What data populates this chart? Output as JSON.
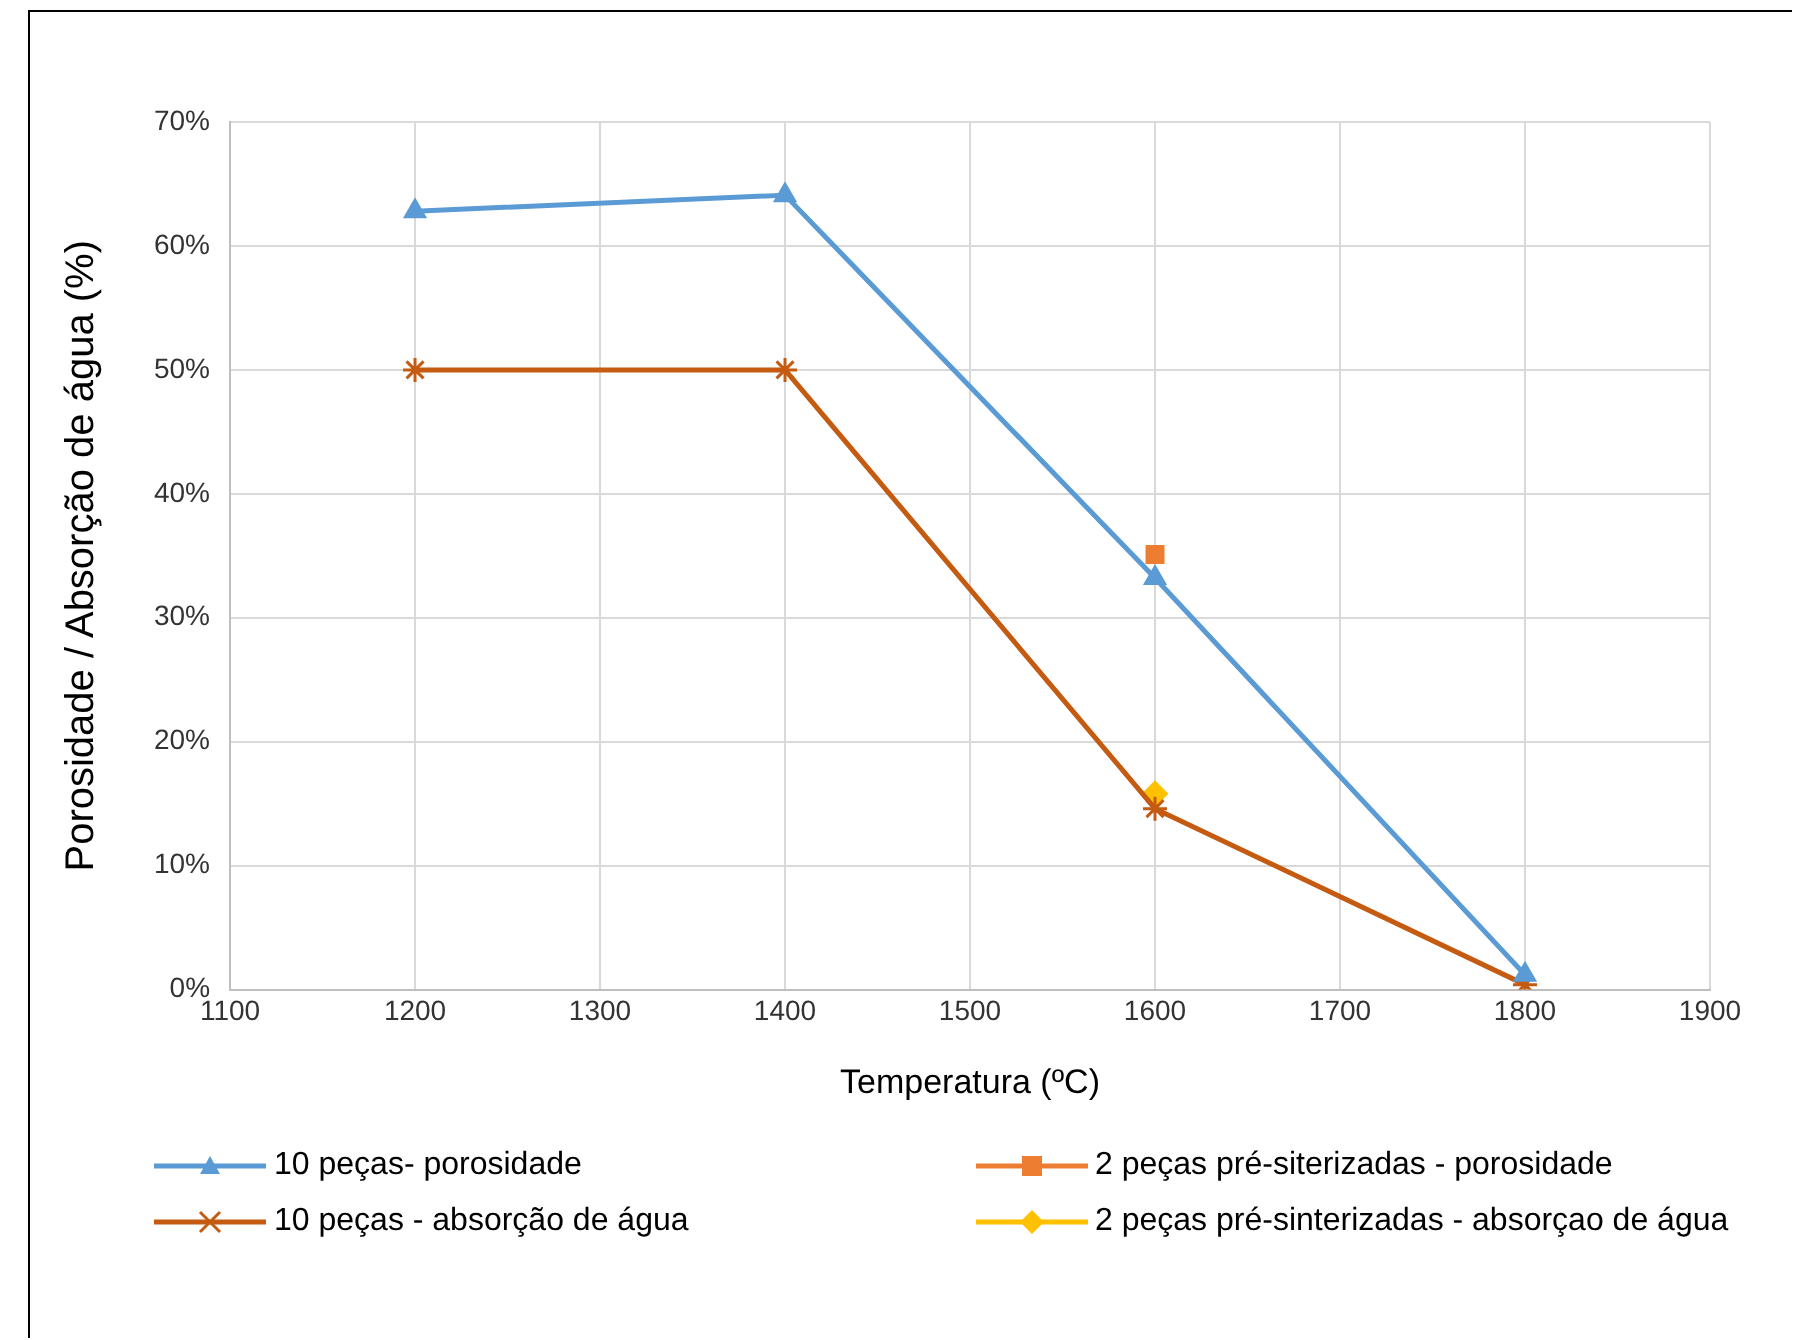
{
  "chart_data": {
    "type": "line",
    "xlabel": "Temperatura (ºC)",
    "ylabel": "Porosidade / Absorção de água (%)",
    "xlim": [
      1100,
      1900
    ],
    "xticks": [
      1100,
      1200,
      1300,
      1400,
      1500,
      1600,
      1700,
      1800,
      1900
    ],
    "ylim": [
      0,
      70
    ],
    "yticks": [
      {
        "value": 0,
        "label": "0%"
      },
      {
        "value": 10,
        "label": "10%"
      },
      {
        "value": 20,
        "label": "20%"
      },
      {
        "value": 30,
        "label": "30%"
      },
      {
        "value": 40,
        "label": "40%"
      },
      {
        "value": 50,
        "label": "50%"
      },
      {
        "value": 60,
        "label": "60%"
      },
      {
        "value": 70,
        "label": "70%"
      }
    ],
    "grid": true,
    "legend": "bottom",
    "series": [
      {
        "name": "10 peças- porosidade",
        "color": "#5b9bd5",
        "marker": "triangle",
        "x": [
          1200,
          1400,
          1600,
          1800
        ],
        "values": [
          62.8,
          64.1,
          33.2,
          1.2
        ]
      },
      {
        "name": "2 peças pré-siterizadas - porosidade",
        "color": "#ed7d31",
        "marker": "square",
        "x": [
          1600
        ],
        "values": [
          35.1
        ]
      },
      {
        "name": "10 peças - absorção de água",
        "color": "#c55a11",
        "marker": "cross",
        "x": [
          1200,
          1400,
          1600,
          1800
        ],
        "values": [
          50,
          50,
          14.6,
          0.4
        ]
      },
      {
        "name": "2 peças pré-sinterizadas - absorçao de água",
        "color": "#ffc000",
        "marker": "diamond",
        "x": [
          1600
        ],
        "values": [
          15.8
        ]
      }
    ]
  }
}
